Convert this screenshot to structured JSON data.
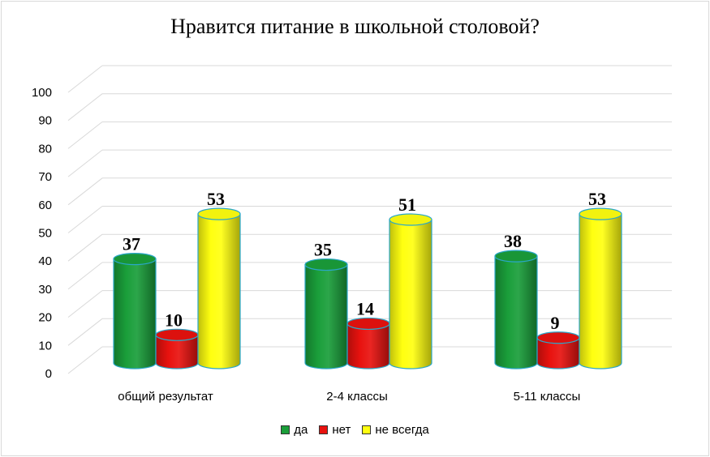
{
  "chart_data": {
    "type": "bar",
    "title": "Нравится  питание в школьной столовой?",
    "categories": [
      "общий результат",
      "2-4 классы",
      "5-11 классы"
    ],
    "series": [
      {
        "name": "да",
        "values": [
          37,
          35,
          38
        ],
        "color": "#1a9e3a"
      },
      {
        "name": "нет",
        "values": [
          10,
          14,
          9
        ],
        "color": "#e8120f"
      },
      {
        "name": "не всегда",
        "values": [
          53,
          51,
          53
        ],
        "color": "#ffff10"
      }
    ],
    "ylim": [
      0,
      100
    ],
    "yticks": [
      "0",
      "10",
      "20",
      "30",
      "40",
      "50",
      "60",
      "70",
      "80",
      "90",
      "100"
    ],
    "grid": true,
    "legend_position": "bottom",
    "style": "3d-cylinder"
  }
}
